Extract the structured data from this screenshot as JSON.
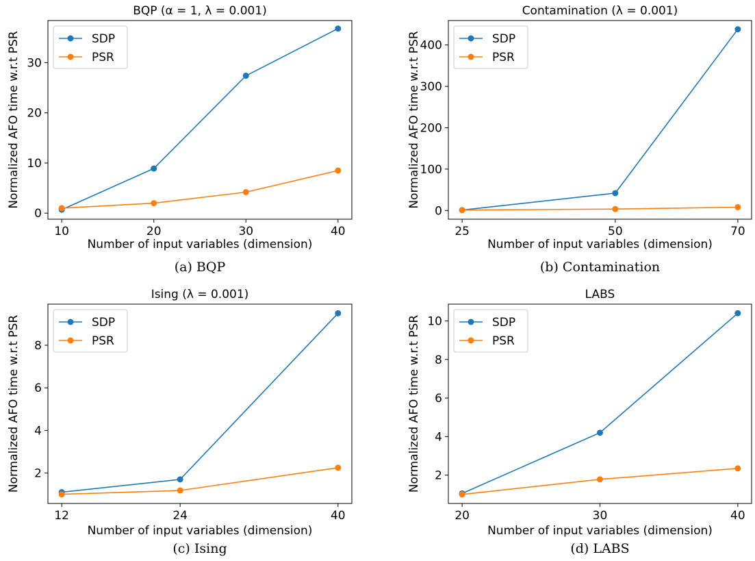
{
  "colors": {
    "sdp": "#1f77b4",
    "psr": "#ff7f0e"
  },
  "chart_data": [
    {
      "type": "line",
      "title": "BQP (α = 1, λ = 0.001)",
      "xlabel": "Number of input variables (dimension)",
      "ylabel": "Normalized AFO time w.r.t PSR",
      "caption": "(a) BQP",
      "x": [
        10,
        20,
        30,
        40
      ],
      "xticks": [
        10,
        20,
        30,
        40
      ],
      "yticks": [
        0,
        10,
        20,
        30
      ],
      "xlim": [
        8.5,
        41.5
      ],
      "ylim": [
        -1.2,
        38.4
      ],
      "legend": "top-left",
      "series": [
        {
          "name": "SDP",
          "values": [
            0.7,
            8.9,
            27.4,
            36.8
          ]
        },
        {
          "name": "PSR",
          "values": [
            1.0,
            2.0,
            4.2,
            8.5
          ]
        }
      ]
    },
    {
      "type": "line",
      "title": "Contamination (λ = 0.001)",
      "xlabel": "Number of input variables (dimension)",
      "ylabel": "Normalized AFO time w.r.t PSR",
      "caption": "(b) Contamination",
      "x": [
        25,
        50,
        70
      ],
      "xticks": [
        25,
        50,
        70
      ],
      "yticks": [
        0,
        100,
        200,
        300,
        400
      ],
      "xlim": [
        22.75,
        72.25
      ],
      "ylim": [
        -21,
        459
      ],
      "legend": "top-left",
      "series": [
        {
          "name": "SDP",
          "values": [
            1.0,
            42,
            438
          ]
        },
        {
          "name": "PSR",
          "values": [
            1.0,
            3.5,
            8.0
          ]
        }
      ]
    },
    {
      "type": "line",
      "title": "Ising (λ = 0.001)",
      "xlabel": "Number of input variables (dimension)",
      "ylabel": "Normalized AFO time w.r.t PSR",
      "caption": "(c) Ising",
      "x": [
        12,
        24,
        40
      ],
      "xticks": [
        12,
        24,
        40
      ],
      "yticks": [
        2,
        4,
        6,
        8
      ],
      "xlim": [
        10.6,
        41.4
      ],
      "ylim": [
        0.57,
        9.93
      ],
      "legend": "top-left",
      "series": [
        {
          "name": "SDP",
          "values": [
            1.1,
            1.7,
            9.5
          ]
        },
        {
          "name": "PSR",
          "values": [
            1.0,
            1.18,
            2.25
          ]
        }
      ]
    },
    {
      "type": "line",
      "title": "LABS",
      "xlabel": "Number of input variables (dimension)",
      "ylabel": "Normalized AFO time w.r.t PSR",
      "caption": "(d) LABS",
      "x": [
        20,
        30,
        40
      ],
      "xticks": [
        20,
        30,
        40
      ],
      "yticks": [
        2,
        4,
        6,
        8,
        10
      ],
      "xlim": [
        19,
        41
      ],
      "ylim": [
        0.53,
        10.87
      ],
      "legend": "top-left",
      "series": [
        {
          "name": "SDP",
          "values": [
            1.05,
            4.2,
            10.4
          ]
        },
        {
          "name": "PSR",
          "values": [
            1.0,
            1.78,
            2.35
          ]
        }
      ]
    }
  ]
}
